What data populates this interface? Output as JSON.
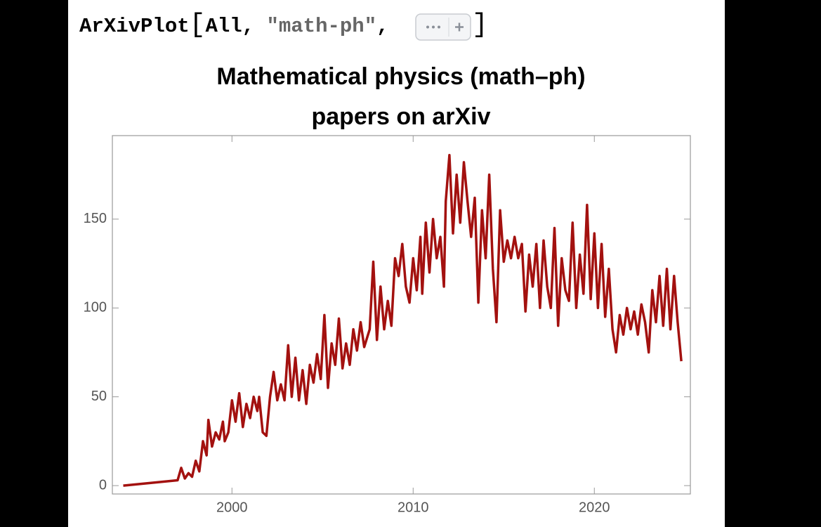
{
  "input": {
    "tokens": [
      "ArXivPlot",
      "[",
      "All, ",
      "\"math-ph\"",
      ", ",
      "]"
    ]
  },
  "chart_data": {
    "type": "line",
    "title": [
      "Mathematical physics (math–ph)",
      "papers on arXiv"
    ],
    "color": "#a3110f",
    "x": [
      1994.0,
      1997.0,
      1997.2,
      1997.4,
      1997.6,
      1997.8,
      1998.0,
      1998.2,
      1998.4,
      1998.6,
      1998.7,
      1998.9,
      1999.1,
      1999.3,
      1999.5,
      1999.6,
      1999.8,
      2000.0,
      2000.2,
      2000.4,
      2000.6,
      2000.8,
      2001.0,
      2001.2,
      2001.4,
      2001.5,
      2001.7,
      2001.9,
      2002.1,
      2002.3,
      2002.5,
      2002.7,
      2002.9,
      2003.1,
      2003.3,
      2003.5,
      2003.7,
      2003.9,
      2004.1,
      2004.3,
      2004.5,
      2004.7,
      2004.9,
      2005.1,
      2005.3,
      2005.5,
      2005.7,
      2005.9,
      2006.1,
      2006.3,
      2006.5,
      2006.7,
      2006.9,
      2007.1,
      2007.3,
      2007.6,
      2007.8,
      2008.0,
      2008.2,
      2008.4,
      2008.6,
      2008.8,
      2009.0,
      2009.2,
      2009.4,
      2009.6,
      2009.8,
      2010.0,
      2010.2,
      2010.4,
      2010.5,
      2010.7,
      2010.9,
      2011.1,
      2011.3,
      2011.5,
      2011.7,
      2011.8,
      2012.0,
      2012.2,
      2012.4,
      2012.6,
      2012.8,
      2013.0,
      2013.2,
      2013.4,
      2013.6,
      2013.8,
      2014.0,
      2014.2,
      2014.4,
      2014.6,
      2014.8,
      2015.0,
      2015.2,
      2015.4,
      2015.6,
      2015.8,
      2016.0,
      2016.2,
      2016.4,
      2016.6,
      2016.8,
      2017.0,
      2017.2,
      2017.4,
      2017.6,
      2017.8,
      2018.0,
      2018.2,
      2018.4,
      2018.6,
      2018.8,
      2019.0,
      2019.2,
      2019.4,
      2019.6,
      2019.8,
      2020.0,
      2020.2,
      2020.4,
      2020.6,
      2020.8,
      2021.0,
      2021.2,
      2021.4,
      2021.6,
      2021.8,
      2022.0,
      2022.2,
      2022.4,
      2022.6,
      2022.8,
      2023.0,
      2023.2,
      2023.4,
      2023.6,
      2023.8,
      2024.0,
      2024.2,
      2024.4,
      2024.6,
      2024.8
    ],
    "values": [
      0,
      3,
      10,
      4,
      7,
      5,
      14,
      8,
      25,
      17,
      37,
      22,
      30,
      26,
      36,
      25,
      30,
      48,
      36,
      52,
      33,
      46,
      38,
      50,
      42,
      50,
      30,
      28,
      50,
      64,
      48,
      57,
      48,
      79,
      50,
      72,
      48,
      65,
      46,
      68,
      58,
      74,
      60,
      96,
      55,
      80,
      68,
      94,
      66,
      80,
      68,
      88,
      76,
      92,
      78,
      88,
      126,
      82,
      112,
      88,
      104,
      90,
      128,
      118,
      136,
      112,
      103,
      128,
      110,
      140,
      108,
      148,
      120,
      150,
      128,
      140,
      112,
      160,
      186,
      142,
      175,
      148,
      182,
      160,
      140,
      162,
      103,
      155,
      128,
      175,
      122,
      92,
      155,
      126,
      138,
      128,
      140,
      128,
      136,
      98,
      130,
      112,
      136,
      100,
      138,
      112,
      100,
      145,
      90,
      128,
      110,
      104,
      148,
      100,
      130,
      108,
      158,
      105,
      142,
      100,
      136,
      95,
      122,
      88,
      75,
      96,
      85,
      100,
      88,
      98,
      85,
      102,
      92,
      75,
      110,
      92,
      118,
      90,
      122,
      88,
      118,
      92,
      70
    ],
    "xlim": [
      1993.4,
      2025.3
    ],
    "ylim": [
      -4.7,
      197
    ],
    "xticks": [
      2000,
      2010,
      2020
    ],
    "yticks": [
      0,
      50,
      100,
      150
    ],
    "grid": false
  }
}
